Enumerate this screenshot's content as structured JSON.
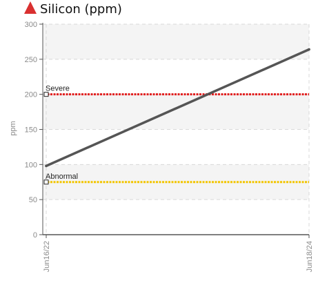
{
  "colors": {
    "alert_icon": "#d93030",
    "series_line": "#555555",
    "severe_line": "#e11d1d",
    "abnormal_line": "#f2c500",
    "band_fill": "#f4f4f4",
    "grid": "#d8d8d8",
    "axis": "#555555"
  },
  "icons": {
    "alert": "red-triangle-warning-icon"
  },
  "chart_data": {
    "type": "line",
    "title": "Silicon (ppm)",
    "xlabel": "",
    "ylabel": "ppm",
    "x_categories": [
      "Jun16/22",
      "Jun18/24"
    ],
    "ylim": [
      0,
      300
    ],
    "yticks": [
      0,
      50,
      100,
      150,
      200,
      250,
      300
    ],
    "grid": true,
    "series": [
      {
        "values": [
          98,
          264
        ]
      }
    ],
    "thresholds": [
      {
        "label": "Severe",
        "value": 200
      },
      {
        "label": "Abnormal",
        "value": 75
      }
    ]
  }
}
